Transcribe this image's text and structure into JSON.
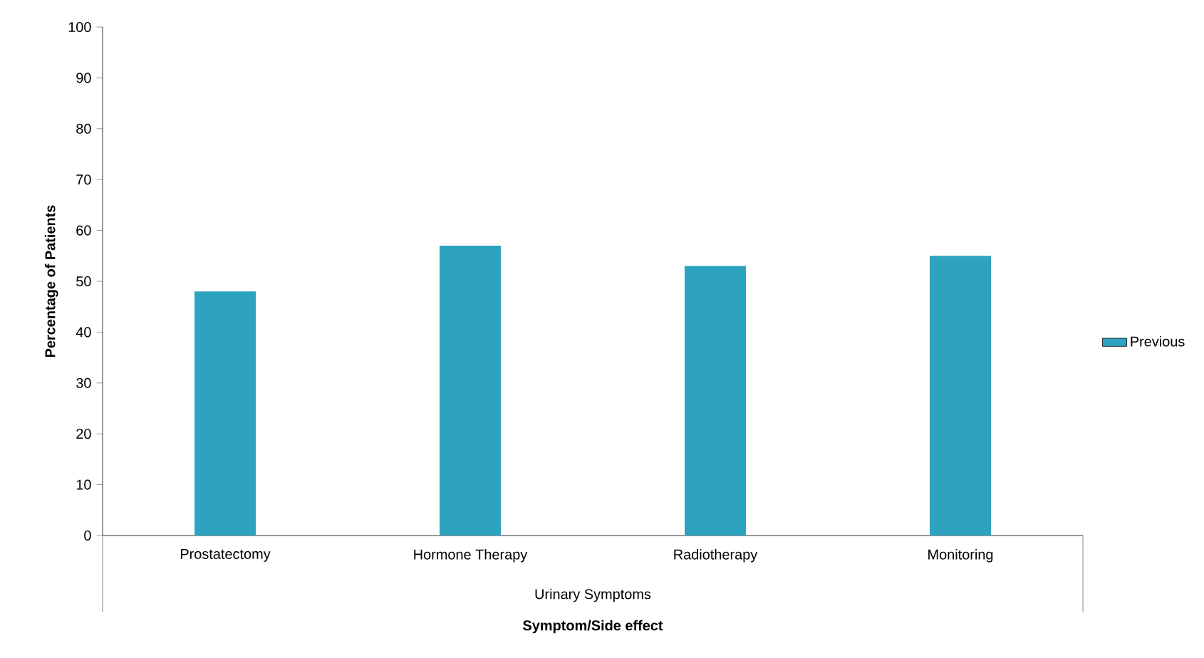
{
  "chart_data": {
    "type": "bar",
    "categories": [
      "Prostatectomy",
      "Hormone Therapy",
      "Radiotherapy",
      "Monitoring"
    ],
    "series": [
      {
        "name": "Previous",
        "color": "#2ea3bf",
        "values": [
          48,
          57,
          53,
          55
        ]
      }
    ],
    "ylim": [
      0,
      100
    ],
    "yticks": [
      0,
      10,
      20,
      30,
      40,
      50,
      60,
      70,
      80,
      90,
      100
    ],
    "xlabel": "Symptom/Side effect",
    "ylabel": "Percentage of Patients",
    "annotations": [
      "Urinary Symptoms"
    ],
    "legend": "right"
  }
}
